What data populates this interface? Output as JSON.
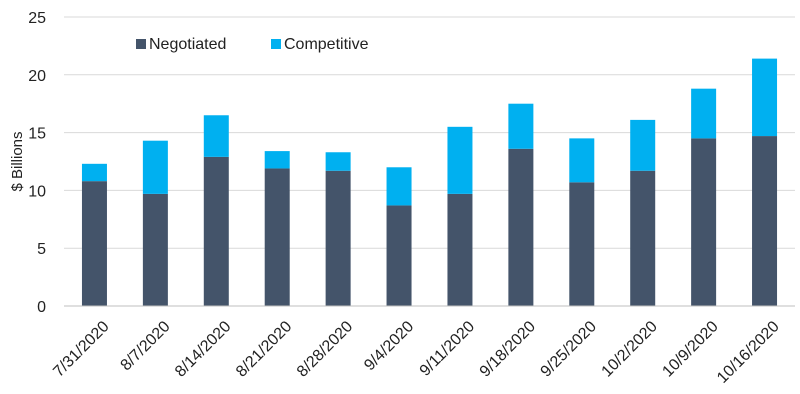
{
  "chart_data": {
    "type": "bar",
    "stacked": true,
    "title": "",
    "xlabel": "",
    "ylabel": "$ Billions",
    "ylim": [
      0,
      25
    ],
    "yticks": [
      0,
      5,
      10,
      15,
      20,
      25
    ],
    "grid": true,
    "legend_position": "top-left",
    "categories": [
      "7/31/2020",
      "8/7/2020",
      "8/14/2020",
      "8/21/2020",
      "8/28/2020",
      "9/4/2020",
      "9/11/2020",
      "9/18/2020",
      "9/25/2020",
      "10/2/2020",
      "10/9/2020",
      "10/16/2020"
    ],
    "series": [
      {
        "name": "Negotiated",
        "color": "#44546a",
        "values": [
          10.8,
          9.7,
          12.9,
          11.9,
          11.7,
          8.7,
          9.7,
          13.6,
          10.7,
          11.7,
          14.5,
          14.7
        ]
      },
      {
        "name": "Competitive",
        "color": "#00b0f0",
        "values": [
          1.5,
          4.6,
          3.6,
          1.5,
          1.6,
          3.3,
          5.8,
          3.9,
          3.8,
          4.4,
          4.3,
          6.7
        ]
      }
    ]
  }
}
